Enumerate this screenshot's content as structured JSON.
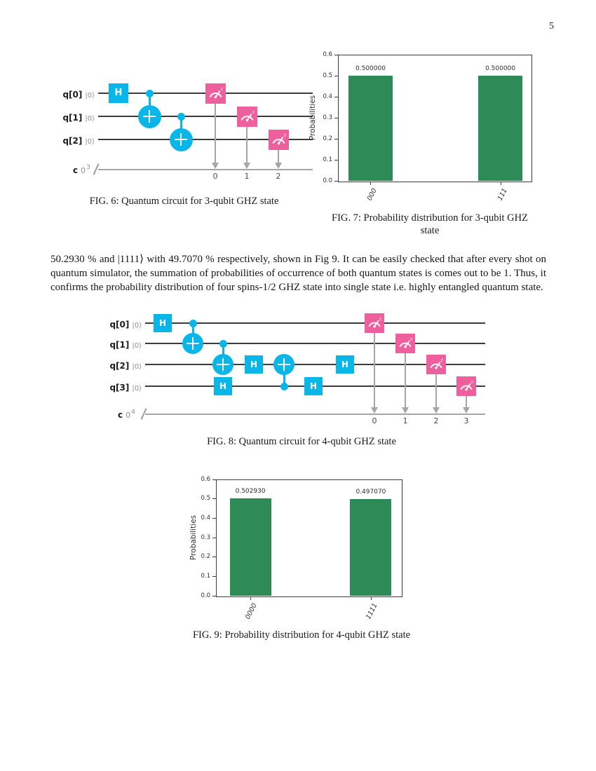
{
  "page_number": "5",
  "colors": {
    "gate_cyan": "#09b6e8",
    "measure_pink": "#ee5f9e",
    "bar_green": "#2e8b57",
    "quantum_wire": "#3c3c3c",
    "classical_wire": "#a6a6a6"
  },
  "paragraph": {
    "text": "50.2930 % and |1111⟩ with 49.7070 % respectively, shown in Fig 9. It can be easily checked that after every shot on quantum simulator, the summation of probabilities of occurrence of both quantum states is comes out to be 1. Thus, it confirms the probability distribution of four spins-1/2 GHZ state into single state i.e. highly entangled quantum state."
  },
  "figures": {
    "fig6": {
      "caption": "FIG. 6: Quantum circuit for 3-qubit GHZ state"
    },
    "fig7": {
      "caption_line1": "FIG. 7: Probability distribution for 3-qubit GHZ",
      "caption_line2": "state"
    },
    "fig8": {
      "caption": "FIG. 8: Quantum circuit for 4-qubit GHZ state"
    },
    "fig9": {
      "caption": "FIG. 9: Probability distribution for 4-qubit GHZ state"
    }
  },
  "circuits": [
    {
      "id": "ghz3",
      "qubits": [
        {
          "label": "q[0]",
          "ket": "|0⟩"
        },
        {
          "label": "q[1]",
          "ket": "|0⟩"
        },
        {
          "label": "q[2]",
          "ket": "|0⟩"
        }
      ],
      "creg": {
        "name": "c",
        "index": "0",
        "size": "3"
      },
      "gates": [
        {
          "type": "h",
          "label": "H",
          "q": 0,
          "col": 0
        },
        {
          "type": "cx",
          "control": 0,
          "target": 1,
          "col": 1
        },
        {
          "type": "cx",
          "control": 1,
          "target": 2,
          "col": 2
        },
        {
          "type": "measure",
          "q": 0,
          "col": 3,
          "bit": "0"
        },
        {
          "type": "measure",
          "q": 1,
          "col": 4,
          "bit": "1"
        },
        {
          "type": "measure",
          "q": 2,
          "col": 5,
          "bit": "2"
        }
      ]
    },
    {
      "id": "ghz4",
      "qubits": [
        {
          "label": "q[0]",
          "ket": "|0⟩"
        },
        {
          "label": "q[1]",
          "ket": "|0⟩"
        },
        {
          "label": "q[2]",
          "ket": "|0⟩"
        },
        {
          "label": "q[3]",
          "ket": "|0⟩"
        }
      ],
      "creg": {
        "name": "c",
        "index": "0",
        "size": "4"
      },
      "gates": [
        {
          "type": "h",
          "label": "H",
          "q": 0,
          "col": 0
        },
        {
          "type": "cx",
          "control": 0,
          "target": 1,
          "col": 1
        },
        {
          "type": "cx",
          "control": 1,
          "target": 2,
          "col": 2
        },
        {
          "type": "h",
          "label": "H",
          "q": 3,
          "col": 2
        },
        {
          "type": "h",
          "label": "H",
          "q": 2,
          "col": 3
        },
        {
          "type": "cx",
          "control": 3,
          "target": 2,
          "col": 4
        },
        {
          "type": "h",
          "label": "H",
          "q": 3,
          "col": 5
        },
        {
          "type": "h",
          "label": "H",
          "q": 2,
          "col": 6
        },
        {
          "type": "measure",
          "q": 0,
          "col": 7,
          "bit": "0"
        },
        {
          "type": "measure",
          "q": 1,
          "col": 8,
          "bit": "1"
        },
        {
          "type": "measure",
          "q": 2,
          "col": 9,
          "bit": "2"
        },
        {
          "type": "measure",
          "q": 3,
          "col": 10,
          "bit": "3"
        }
      ]
    }
  ],
  "chart_data": [
    {
      "id": "fig7",
      "type": "bar",
      "title": "",
      "categories": [
        "000",
        "111"
      ],
      "values": [
        0.5,
        0.5
      ],
      "bar_labels": [
        "0.500000",
        "0.500000"
      ],
      "xlabel": "",
      "ylabel": "Probabilities",
      "ylim": [
        0.0,
        0.6
      ],
      "yticks": [
        "0.0",
        "0.1",
        "0.2",
        "0.3",
        "0.4",
        "0.5",
        "0.6"
      ],
      "grid": false,
      "legend": null
    },
    {
      "id": "fig9",
      "type": "bar",
      "title": "",
      "categories": [
        "0000",
        "1111"
      ],
      "values": [
        0.50293,
        0.49707
      ],
      "bar_labels": [
        "0.502930",
        "0.497070"
      ],
      "xlabel": "",
      "ylabel": "Probabilities",
      "ylim": [
        0.0,
        0.6
      ],
      "yticks": [
        "0.0",
        "0.1",
        "0.2",
        "0.3",
        "0.4",
        "0.5",
        "0.6"
      ],
      "grid": false,
      "legend": null
    }
  ]
}
